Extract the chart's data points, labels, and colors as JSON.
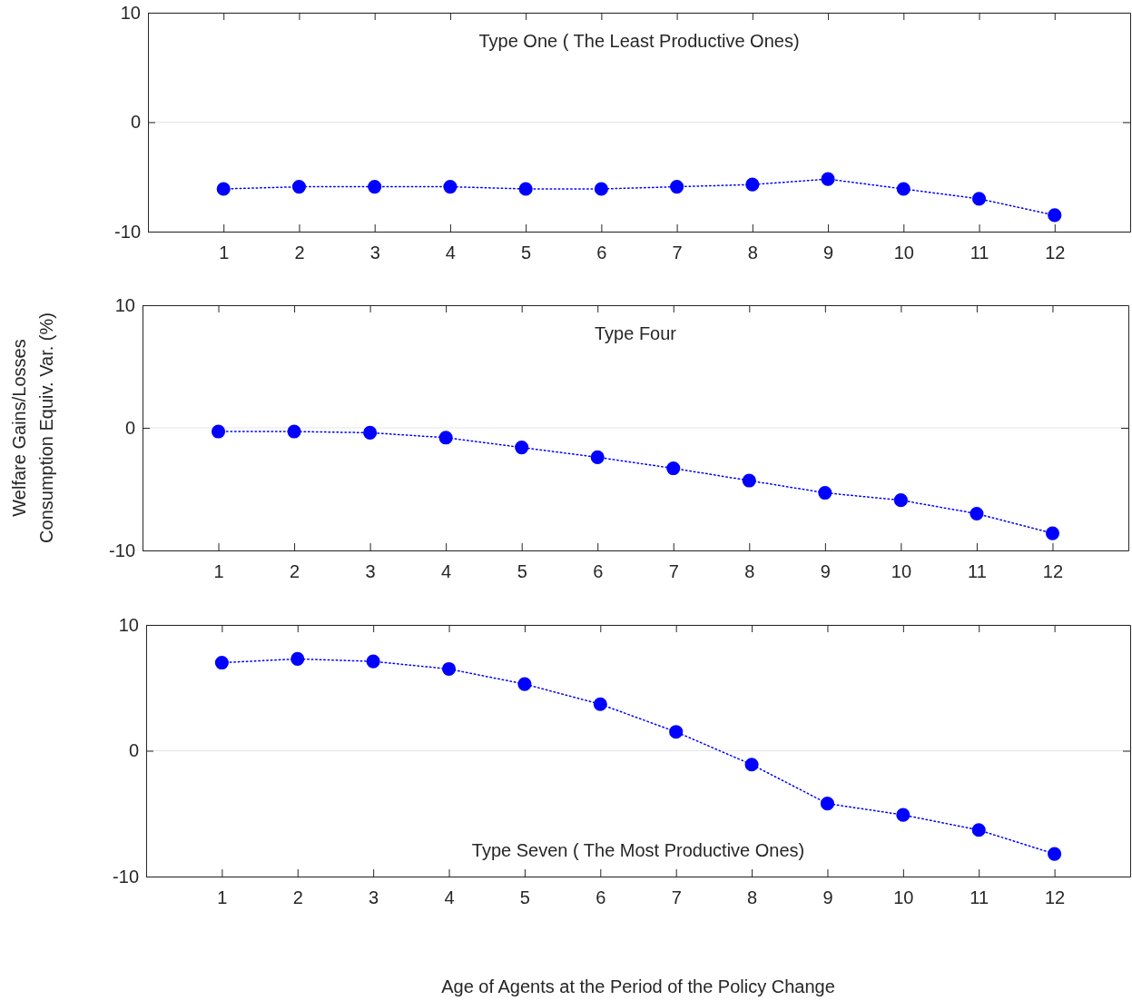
{
  "chart_data": [
    {
      "type": "line",
      "title": "Type One ( The Least Productive Ones)",
      "x": [
        1,
        2,
        3,
        4,
        5,
        6,
        7,
        8,
        9,
        10,
        11,
        12
      ],
      "series": [
        {
          "color": "#0000ff",
          "values": [
            -6.1,
            -5.9,
            -5.9,
            -5.9,
            -6.1,
            -6.1,
            -5.9,
            -5.7,
            -5.2,
            -6.1,
            -7.0,
            -8.5
          ]
        }
      ],
      "xlim": [
        0,
        13
      ],
      "xticks": [
        1,
        2,
        3,
        4,
        5,
        6,
        7,
        8,
        9,
        10,
        11,
        12
      ],
      "ylim": [
        -10,
        10
      ],
      "yticks": [
        -10,
        0,
        10
      ],
      "grid": "y",
      "marker": "circle",
      "line_style": "dotted"
    },
    {
      "type": "line",
      "title": "Type Four",
      "ylabel": "Welfare Gains/Losses\nConsumption Equiv. Var. (%)",
      "x": [
        1,
        2,
        3,
        4,
        5,
        6,
        7,
        8,
        9,
        10,
        11,
        12
      ],
      "series": [
        {
          "color": "#0000ff",
          "values": [
            -0.3,
            -0.3,
            -0.4,
            -0.8,
            -1.6,
            -2.4,
            -3.3,
            -4.3,
            -5.3,
            -5.9,
            -7.0,
            -8.6
          ]
        }
      ],
      "xlim": [
        0,
        13
      ],
      "xticks": [
        1,
        2,
        3,
        4,
        5,
        6,
        7,
        8,
        9,
        10,
        11,
        12
      ],
      "ylim": [
        -10,
        10
      ],
      "yticks": [
        -10,
        0,
        10
      ],
      "grid": "y",
      "marker": "circle",
      "line_style": "dotted"
    },
    {
      "type": "line",
      "title": "Type Seven ( The Most Productive Ones)",
      "xlabel": "Age of Agents at the Period of the Policy Change",
      "x": [
        1,
        2,
        3,
        4,
        5,
        6,
        7,
        8,
        9,
        10,
        11,
        12
      ],
      "series": [
        {
          "color": "#0000ff",
          "values": [
            7.0,
            7.3,
            7.1,
            6.5,
            5.3,
            3.7,
            1.5,
            -1.1,
            -4.2,
            -5.1,
            -6.3,
            -8.2
          ]
        }
      ],
      "xlim": [
        0,
        13
      ],
      "xticks": [
        1,
        2,
        3,
        4,
        5,
        6,
        7,
        8,
        9,
        10,
        11,
        12
      ],
      "ylim": [
        -10,
        10
      ],
      "yticks": [
        -10,
        0,
        10
      ],
      "grid": "y",
      "marker": "circle",
      "line_style": "dotted"
    }
  ]
}
